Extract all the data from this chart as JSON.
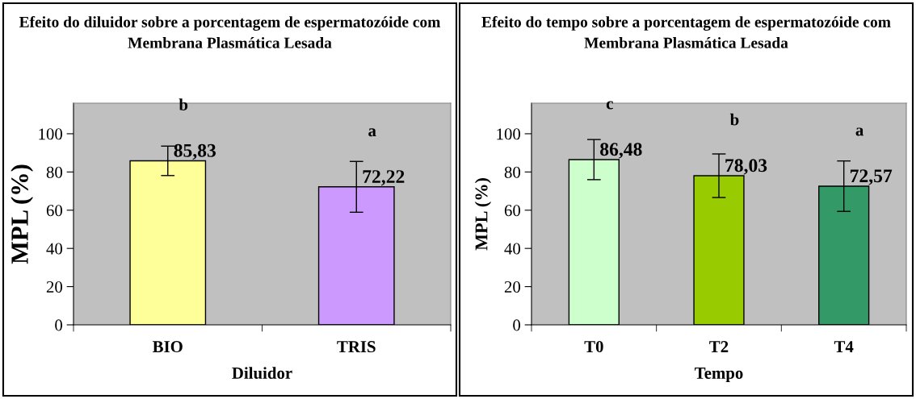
{
  "chart_data": [
    {
      "type": "bar",
      "title": "Efeito do diluidor sobre a porcentagem de espermatozóide com Membrana Plasmática Lesada",
      "xlabel": "Diluidor",
      "ylabel": "MPL (%)",
      "categories": [
        "BIO",
        "TRIS"
      ],
      "values": [
        85.83,
        72.22
      ],
      "colors": [
        "#ffff99",
        "#cc99ff"
      ],
      "errors": [
        7.7,
        13.3
      ],
      "value_labels": [
        "85,83",
        "72,22"
      ],
      "ylim": [
        0,
        116
      ],
      "yticks": [
        0,
        20,
        40,
        60,
        80,
        100
      ],
      "grid": false,
      "annotations": [
        "b",
        "a"
      ]
    },
    {
      "type": "bar",
      "title": "Efeito do tempo sobre a porcentagem de espermatozóide com Membrana Plasmática Lesada",
      "xlabel": "Tempo",
      "ylabel": "MPL (%)",
      "categories": [
        "T0",
        "T2",
        "T4"
      ],
      "values": [
        86.48,
        78.03,
        72.57
      ],
      "colors": [
        "#ccffcc",
        "#99cc00",
        "#339966"
      ],
      "errors": [
        10.5,
        11.4,
        13.2
      ],
      "value_labels": [
        "86,48",
        "78,03",
        "72,57"
      ],
      "ylim": [
        0,
        116
      ],
      "yticks": [
        0,
        20,
        40,
        60,
        80,
        100
      ],
      "grid": false,
      "annotations": [
        "c",
        "b",
        "a"
      ]
    }
  ]
}
